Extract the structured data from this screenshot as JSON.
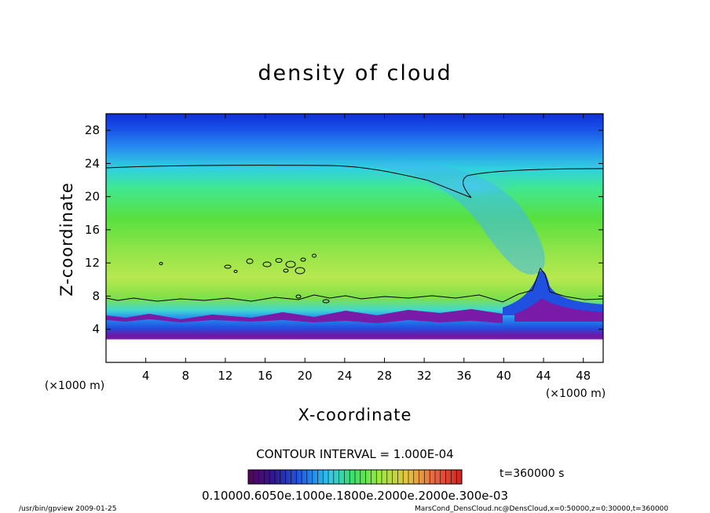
{
  "chart_data": {
    "type": "heatmap",
    "title": "density of cloud",
    "xlabel": "X-coordinate",
    "ylabel": "Z-coordinate",
    "x_unit": "(×1000 m)",
    "y_unit": "(×1000 m)",
    "xlim": [
      0,
      50
    ],
    "ylim": [
      0,
      30
    ],
    "x_ticks": [
      4,
      8,
      12,
      16,
      20,
      24,
      28,
      32,
      36,
      40,
      44,
      48
    ],
    "y_ticks": [
      4,
      8,
      12,
      16,
      20,
      24,
      28
    ],
    "contour_interval": "CONTOUR INTERVAL = 1.000E-04",
    "colorbar_labels": "0.10000.6050e.1000e.1800e.2000e.2000e.300e-03",
    "time_label": "t=360000 s",
    "grid": false,
    "contour_line_z": {
      "upper_left": 23.5,
      "upper_right": 23.6,
      "lower_edge": 7.3
    }
  },
  "footer": {
    "left": "/usr/bin/gpview  2009-01-25",
    "right": "MarsCond_DensCloud.nc@DensCloud,x=0:50000,z=0:30000,t=360000"
  },
  "colors": {
    "top": "#1030d8",
    "upper_blue": "#2878f0",
    "cyan": "#30d8e8",
    "green": "#50e040",
    "yellow_green": "#b8e848",
    "base_blue": "#2050e0",
    "base_purple": "#7a1aa8"
  }
}
